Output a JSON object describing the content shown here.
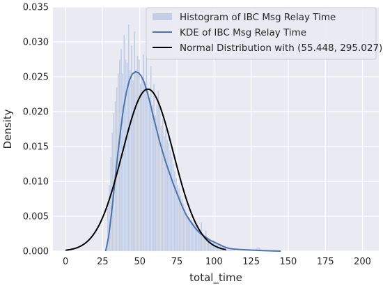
{
  "chart_data": {
    "type": "area",
    "xlabel": "total_time",
    "ylabel": "Density",
    "xlim": [
      -8.5,
      211
    ],
    "ylim": [
      0,
      0.035
    ],
    "xticks": [
      0,
      25,
      50,
      75,
      100,
      125,
      150,
      175,
      200
    ],
    "xtick_labels": [
      "0",
      "25",
      "50",
      "75",
      "100",
      "125",
      "150",
      "175",
      "200"
    ],
    "yticks": [
      0,
      0.005,
      0.01,
      0.015,
      0.02,
      0.025,
      0.03,
      0.035
    ],
    "ytick_labels": [
      "0.000",
      "0.005",
      "0.010",
      "0.015",
      "0.020",
      "0.025",
      "0.030",
      "0.035"
    ],
    "grid": true,
    "legend_position": "top-right",
    "colors": {
      "background": "#eaeaf2",
      "grid": "#ffffff",
      "histogram": "#c3cde4",
      "kde": "#4c72b0",
      "normal": "#000000"
    },
    "series": [
      {
        "name": "Histogram of IBC Msg Relay Time",
        "kind": "histogram",
        "bin_width": 1,
        "x_start": 28,
        "values": [
          0.0072,
          0.0095,
          0.0135,
          0.017,
          0.0198,
          0.0215,
          0.0235,
          0.0255,
          0.0275,
          0.029,
          0.0255,
          0.031,
          0.0275,
          0.027,
          0.0325,
          0.026,
          0.0295,
          0.0245,
          0.0315,
          0.026,
          0.028,
          0.0275,
          0.024,
          0.025,
          0.0282,
          0.024,
          0.029,
          0.023,
          0.022,
          0.0265,
          0.021,
          0.024,
          0.0195,
          0.021,
          0.023,
          0.0205,
          0.018,
          0.019,
          0.0165,
          0.0175,
          0.016,
          0.0155,
          0.0145,
          0.0135,
          0.0125,
          0.0115,
          0.0105,
          0.0095,
          0.009,
          0.008,
          0.0075,
          0.0068,
          0.006,
          0.0055,
          0.005,
          0.0048,
          0.0045,
          0.0042,
          0.004,
          0.0038,
          0.0035,
          0.0032,
          0.003,
          0.0042,
          0.0025,
          0.0022,
          0.003,
          0.0018,
          0.0016,
          0.0015,
          0.0014,
          0.0012,
          0.0011,
          0.001,
          0.0009,
          0.0008,
          0.0007,
          0.0006,
          0.0005,
          0.0004,
          0.0003,
          0.0003,
          0.0002,
          0.0002,
          0.0001,
          0.0001,
          0,
          0,
          0,
          0,
          0,
          0,
          0,
          0,
          0,
          0,
          0,
          0,
          0,
          0,
          0.0004,
          0.0006,
          0.0005,
          0.0003,
          0,
          0.0002,
          0,
          0.0001,
          0,
          0,
          0,
          0.0001,
          0,
          0,
          0.0001
        ]
      },
      {
        "name": "KDE of IBC Msg Relay Time",
        "kind": "line",
        "x": [
          27,
          29,
          31,
          33,
          35,
          37,
          39,
          41,
          43,
          45,
          47,
          49,
          51,
          53,
          55,
          57,
          59,
          61,
          63,
          65,
          67,
          69,
          71,
          73,
          75,
          77,
          79,
          81,
          83,
          85,
          87,
          89,
          91,
          93,
          95,
          97,
          99,
          101,
          103,
          105,
          107,
          110,
          113,
          116,
          120,
          125,
          130,
          135,
          140,
          145
        ],
        "y": [
          0.0,
          0.002,
          0.0055,
          0.0095,
          0.0135,
          0.0172,
          0.0205,
          0.0228,
          0.0245,
          0.0254,
          0.0257,
          0.0256,
          0.0251,
          0.0242,
          0.0228,
          0.0212,
          0.0194,
          0.0177,
          0.016,
          0.0145,
          0.0131,
          0.0118,
          0.0106,
          0.0094,
          0.0083,
          0.0072,
          0.0062,
          0.0053,
          0.0046,
          0.004,
          0.0034,
          0.0029,
          0.0025,
          0.0022,
          0.0019,
          0.0016,
          0.0014,
          0.0012,
          0.001,
          0.0008,
          0.0006,
          0.0004,
          0.0003,
          0.00025,
          0.0002,
          0.00015,
          0.0001,
          6e-05,
          2e-05,
          0.0
        ]
      },
      {
        "name": "Normal Distribution with (55.448, 295.027)",
        "kind": "line",
        "mean": 55.448,
        "variance": 295.027,
        "x_range": [
          0,
          108
        ]
      }
    ]
  }
}
